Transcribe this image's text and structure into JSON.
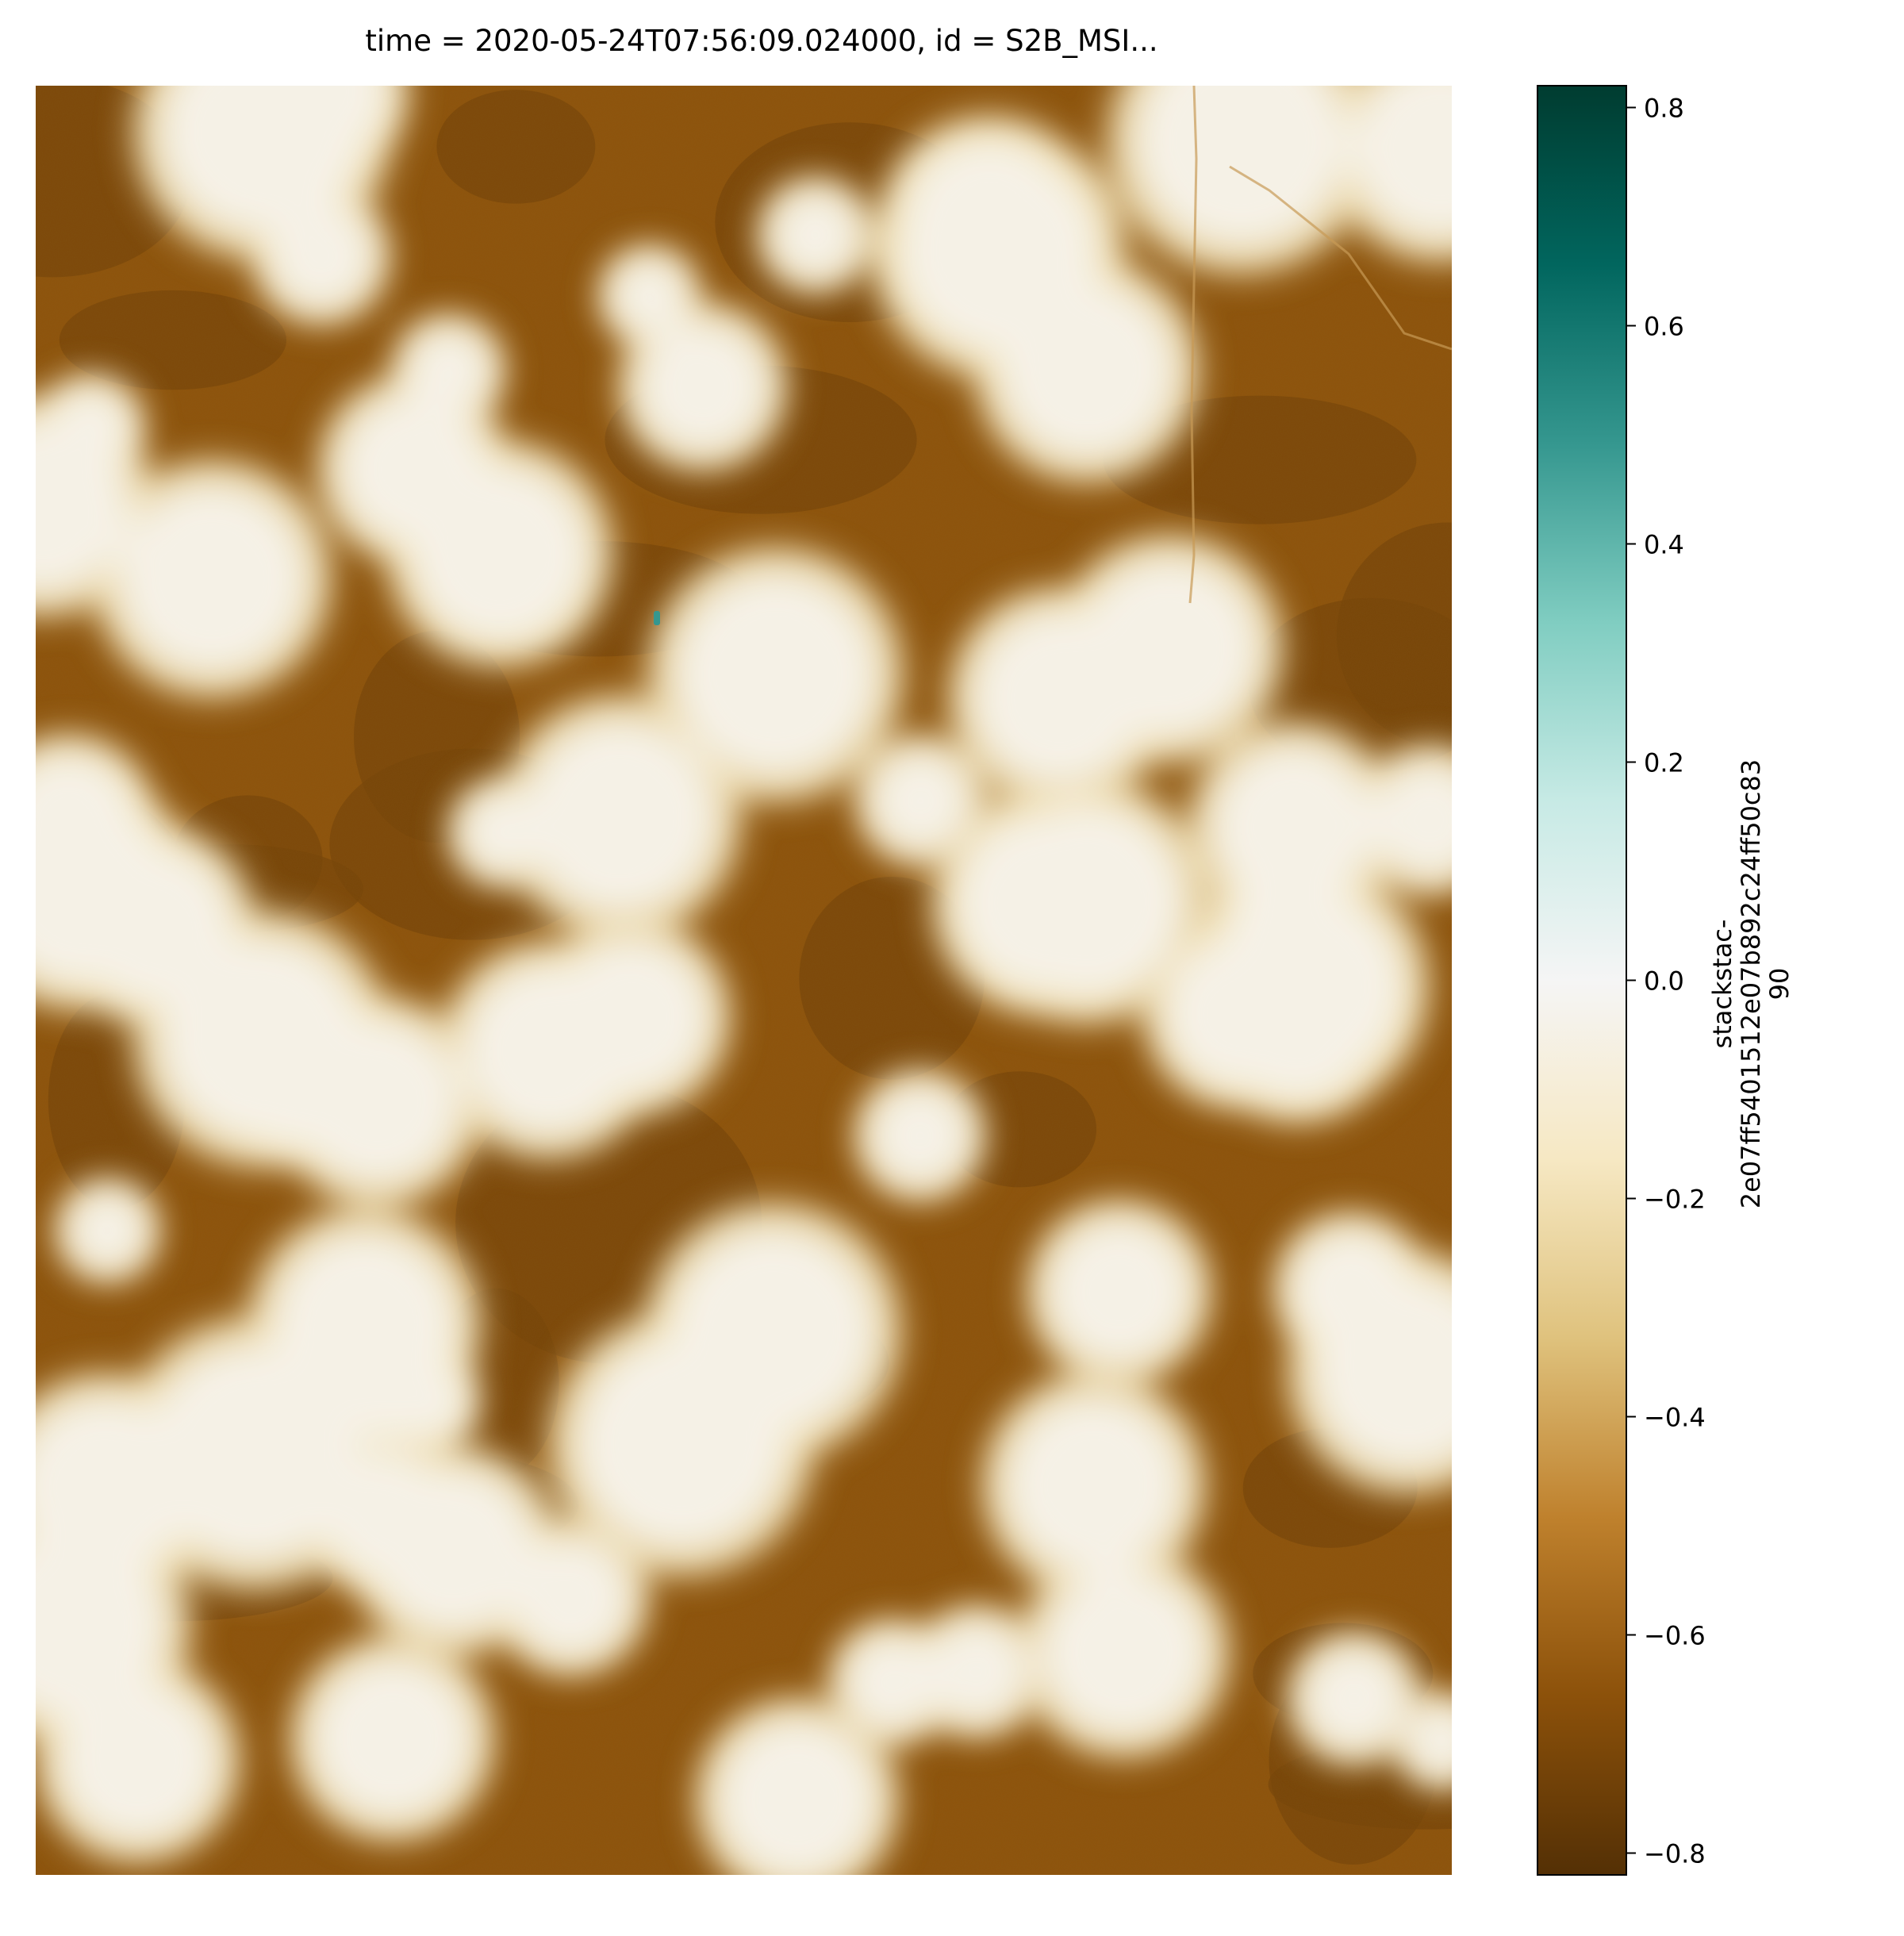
{
  "title": "time = 2020-05-24T07:56:09.024000, id = S2B_MSI...",
  "colorbar": {
    "label_lines": [
      "stackstac-",
      "2e07ff5401512e07b892c24ff50c83",
      "90"
    ],
    "range": [
      -0.82,
      0.82
    ],
    "ticks": [
      0.8,
      0.6,
      0.4,
      0.2,
      0.0,
      -0.2,
      -0.4,
      -0.6,
      -0.8
    ],
    "tick_labels": [
      "0.8",
      "0.6",
      "0.4",
      "0.2",
      "0.0",
      "−0.2",
      "−0.4",
      "−0.6",
      "−0.8"
    ],
    "colormap": "BrBG",
    "colormap_stops": [
      "#543005",
      "#8c510a",
      "#bf812d",
      "#dfc27d",
      "#f6e8c3",
      "#f5f5f5",
      "#c7eae5",
      "#80cdc1",
      "#35978f",
      "#01665e",
      "#003c30"
    ]
  },
  "chart_data": {
    "type": "heatmap",
    "title": "time = 2020-05-24T07:56:09.024000, id = S2B_MSI...",
    "value_range": [
      -0.82,
      0.82
    ],
    "colormap": "BrBG",
    "axes_visible": false,
    "description_values": {
      "cloud_regions_approx_value": -0.05,
      "land_regions_approx_value": -0.65
    }
  }
}
